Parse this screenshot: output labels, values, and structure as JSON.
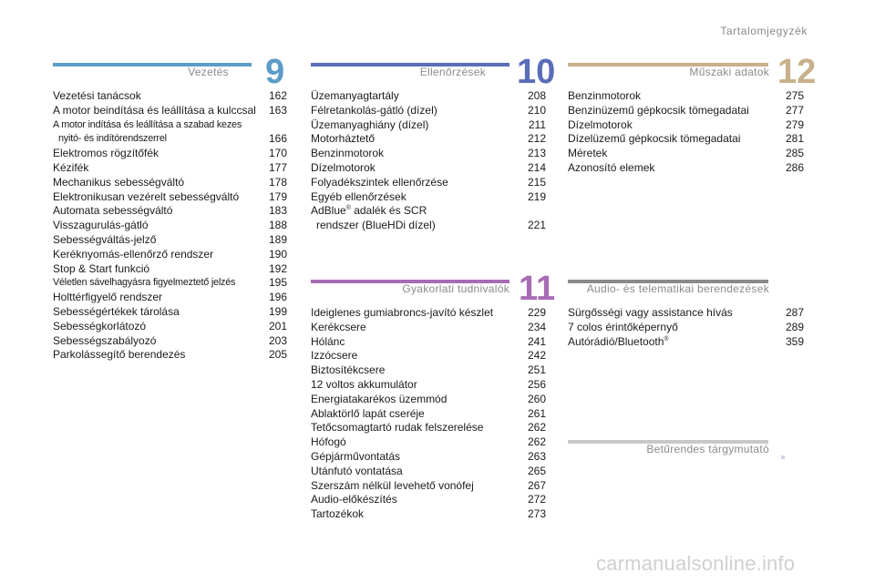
{
  "header": {
    "title": "Tartalomjegyzék"
  },
  "sections": {
    "vezetes": {
      "title": "Vezetés",
      "number": "9",
      "color": "#5b9cc8",
      "entries": [
        {
          "label": "Vezetési tanácsok",
          "page": "162"
        },
        {
          "label": "A motor beindítása és leállítása a kulccsal",
          "page": "163"
        },
        {
          "label": "A motor indítása és leállítása a szabad kezes",
          "label2": "nyitó- és indítórendszerrel",
          "page": "166"
        },
        {
          "label": "Elektromos rögzítőfék",
          "page": "170"
        },
        {
          "label": "Kézifék",
          "page": "177"
        },
        {
          "label": "Mechanikus sebességváltó",
          "page": "178"
        },
        {
          "label": "Elektronikusan vezérelt sebességváltó",
          "page": "179"
        },
        {
          "label": "Automata sebességváltó",
          "page": "183"
        },
        {
          "label": "Visszagurulás-gátló",
          "page": "188"
        },
        {
          "label": "Sebességváltás-jelző",
          "page": "189"
        },
        {
          "label": "Keréknyomás-ellenőrző rendszer",
          "page": "190"
        },
        {
          "label": "Stop & Start funkció",
          "page": "192"
        },
        {
          "label": "Véletlen sávelhagyásra figyelmeztető jelzés",
          "page": "195"
        },
        {
          "label": "Holttérfigyelő rendszer",
          "page": "196"
        },
        {
          "label": "Sebességértékek tárolása",
          "page": "199"
        },
        {
          "label": "Sebességkorlátozó",
          "page": "201"
        },
        {
          "label": "Sebességszabályozó",
          "page": "203"
        },
        {
          "label": "Parkolássegítő berendezés",
          "page": "205"
        }
      ]
    },
    "ellenorzesek": {
      "title": "Ellenőrzések",
      "number": "10",
      "color": "#5a6cb8",
      "entries": [
        {
          "label": "Üzemanyagtartály",
          "page": "208"
        },
        {
          "label": "Félretankolás-gátló (dízel)",
          "page": "210"
        },
        {
          "label": "Üzemanyaghiány (dízel)",
          "page": "211"
        },
        {
          "label": "Motorháztető",
          "page": "212"
        },
        {
          "label": "Benzinmotorok",
          "page": "213"
        },
        {
          "label": "Dízelmotorok",
          "page": "214"
        },
        {
          "label": "Folyadékszintek ellenőrzése",
          "page": "215"
        },
        {
          "label": "Egyéb ellenőrzések",
          "page": "219"
        },
        {
          "label": "AdBlue",
          "sup": "®",
          "label_rest": " adalék és SCR",
          "label2": "rendszer (BlueHDi dízel)",
          "page": "221"
        }
      ]
    },
    "muszaki": {
      "title": "Műszaki adatok",
      "number": "12",
      "color": "#c8b08a",
      "entries": [
        {
          "label": "Benzinmotorok",
          "page": "275"
        },
        {
          "label": "Benzinüzemű gépkocsik tömegadatai",
          "page": "277"
        },
        {
          "label": "Dízelmotorok",
          "page": "279"
        },
        {
          "label": "Dízelüzemű gépkocsik tömegadatai",
          "page": "281"
        },
        {
          "label": "Méretek",
          "page": "285"
        },
        {
          "label": "Azonosító elemek",
          "page": "286"
        }
      ]
    },
    "gyakorlati": {
      "title": "Gyakorlati tudnivalók",
      "number": "11",
      "color": "#a86bb5",
      "entries": [
        {
          "label": "Ideiglenes gumiabroncs-javító készlet",
          "page": "229"
        },
        {
          "label": "Kerékcsere",
          "page": "234"
        },
        {
          "label": "Hólánc",
          "page": "241"
        },
        {
          "label": "Izzócsere",
          "page": "242"
        },
        {
          "label": "Biztosítékcsere",
          "page": "251"
        },
        {
          "label": "12 voltos akkumulátor",
          "page": "256"
        },
        {
          "label": "Energiatakarékos üzemmód",
          "page": "260"
        },
        {
          "label": "Ablaktörlő lapát cseréje",
          "page": "261"
        },
        {
          "label": "Tetőcsomagtartó rudak felszerelése",
          "page": "262"
        },
        {
          "label": "Hófogó",
          "page": "262"
        },
        {
          "label": "Gépjárművontatás",
          "page": "263"
        },
        {
          "label": "Utánfutó vontatása",
          "page": "265"
        },
        {
          "label": "Szerszám nélkül levehető vonófej",
          "page": "267"
        },
        {
          "label": "Audio-előkészítés",
          "page": "272"
        },
        {
          "label": "Tartozékok",
          "page": "273"
        }
      ]
    },
    "audio": {
      "title": "Audio- és telematikai berendezések",
      "color": "#8a8a8a",
      "entries": [
        {
          "label": "Sürgősségi vagy assistance hívás",
          "page": "287"
        },
        {
          "label": "7 colos érintőképernyő",
          "page": "289"
        },
        {
          "label": "Autórádió/Bluetooth",
          "sup": "®",
          "page": "359"
        }
      ]
    },
    "beturendes": {
      "title": "Betűrendes tárgymutató",
      "color": "#c8c8c8"
    }
  },
  "watermark": "carmanualsonline.info"
}
